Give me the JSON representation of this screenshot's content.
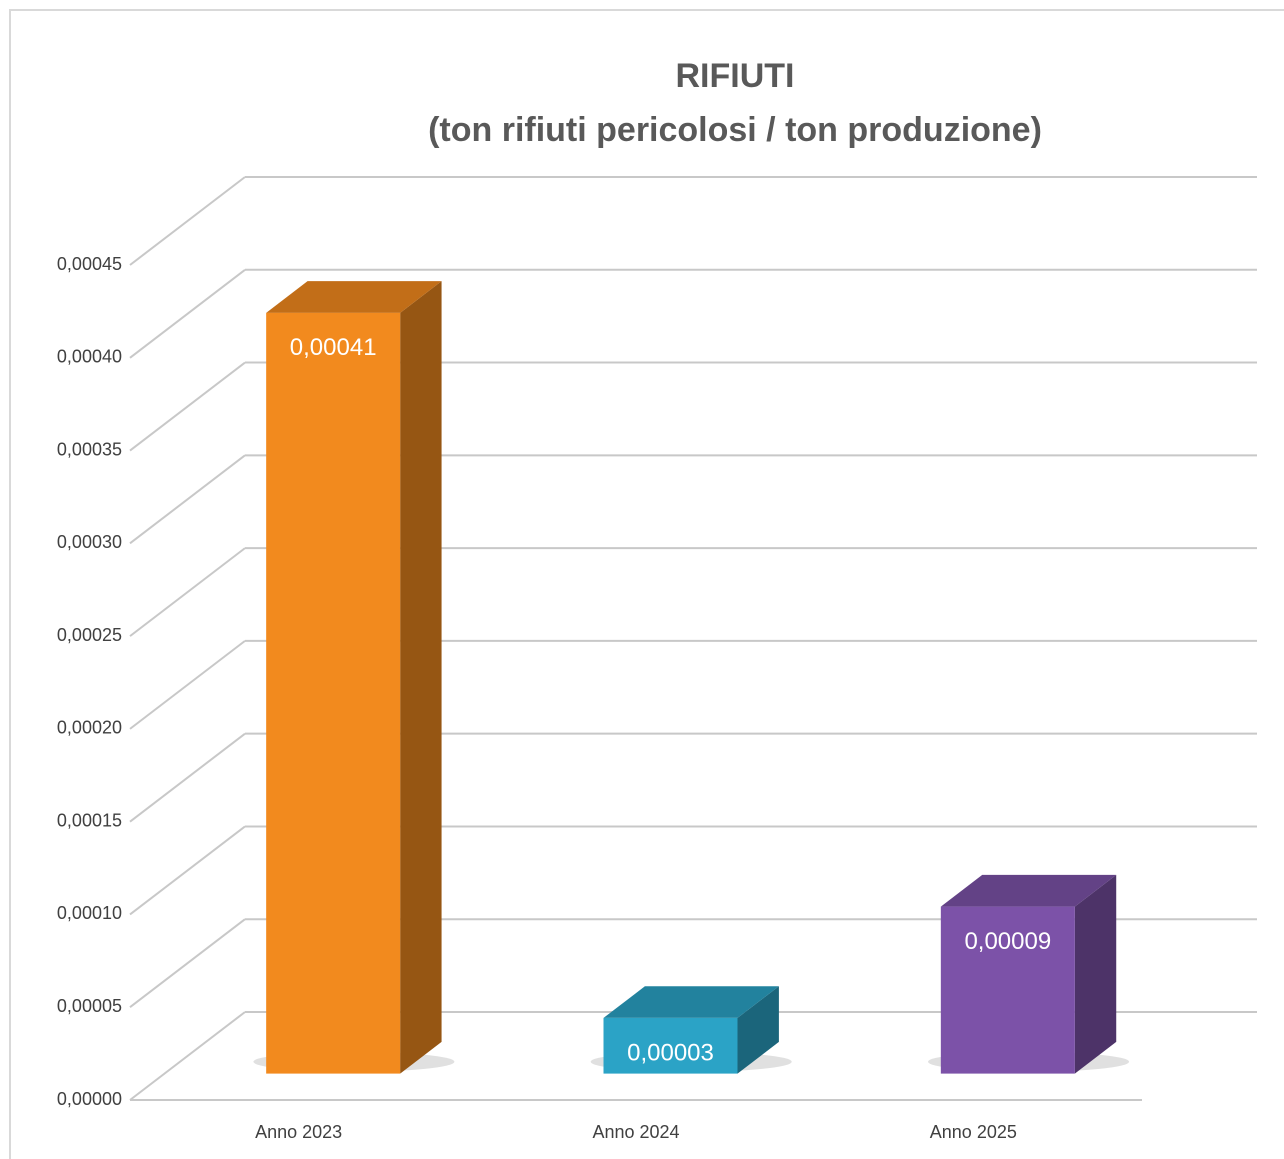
{
  "chart_data": {
    "type": "bar3d",
    "title": "RIFIUTI",
    "subtitle": "(ton rifiuti pericolosi / ton produzione)",
    "categories": [
      "Anno 2023",
      "Anno 2024",
      "Anno 2025"
    ],
    "values": [
      0.00041,
      3e-05,
      9e-05
    ],
    "value_labels": [
      "0,00041",
      "0,00003",
      "0,00009"
    ],
    "colors": [
      "#f28a1e",
      "#2ba3c6",
      "#7c52a8"
    ],
    "ylim": [
      0,
      0.00045
    ],
    "yticks": [
      {
        "value": 0,
        "label": "0,00000"
      },
      {
        "value": 5e-05,
        "label": "0,00005"
      },
      {
        "value": 0.0001,
        "label": "0,00010"
      },
      {
        "value": 0.00015,
        "label": "0,00015"
      },
      {
        "value": 0.0002,
        "label": "0,00020"
      },
      {
        "value": 0.00025,
        "label": "0,00025"
      },
      {
        "value": 0.0003,
        "label": "0,00030"
      },
      {
        "value": 0.00035,
        "label": "0,00035"
      },
      {
        "value": 0.0004,
        "label": "0,00040"
      },
      {
        "value": 0.00045,
        "label": "0,00045"
      }
    ],
    "grid": true
  }
}
